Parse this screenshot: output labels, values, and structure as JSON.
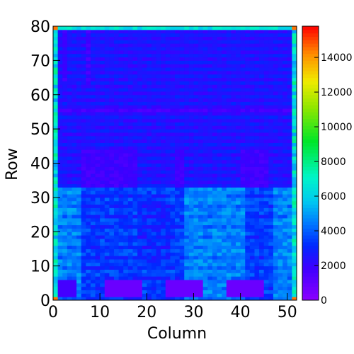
{
  "chart_data": {
    "type": "heatmap",
    "title": "",
    "xlabel": "Column",
    "ylabel": "Row",
    "xlim": [
      0,
      52
    ],
    "ylim": [
      0,
      80
    ],
    "x_ticks": [
      "0",
      "10",
      "20",
      "30",
      "40",
      "50"
    ],
    "y_ticks": [
      "0",
      "10",
      "20",
      "30",
      "40",
      "50",
      "60",
      "70",
      "80"
    ],
    "colorbar": {
      "min": 0,
      "max": 15800,
      "ticks": [
        "0",
        "2000",
        "4000",
        "6000",
        "8000",
        "10000",
        "12000",
        "14000"
      ],
      "palette": "rainbow (violet-blue-cyan-green-yellow-red)"
    },
    "approx_cell_values": {
      "upper_band_rows_34_80": 2800,
      "upper_band_dark_stripes": 2200,
      "lower_band_rows_0_33_bright": 4700,
      "lower_band_rows_0_33_mid": 3600,
      "block_rows_33_43_cols_6_17": 1800,
      "dead_blocks_rows_1_6": 800,
      "edge_columns": 6500,
      "corner_cells": 14500
    },
    "colors": {
      "background": "#ffffff",
      "axis": "#000000"
    }
  }
}
